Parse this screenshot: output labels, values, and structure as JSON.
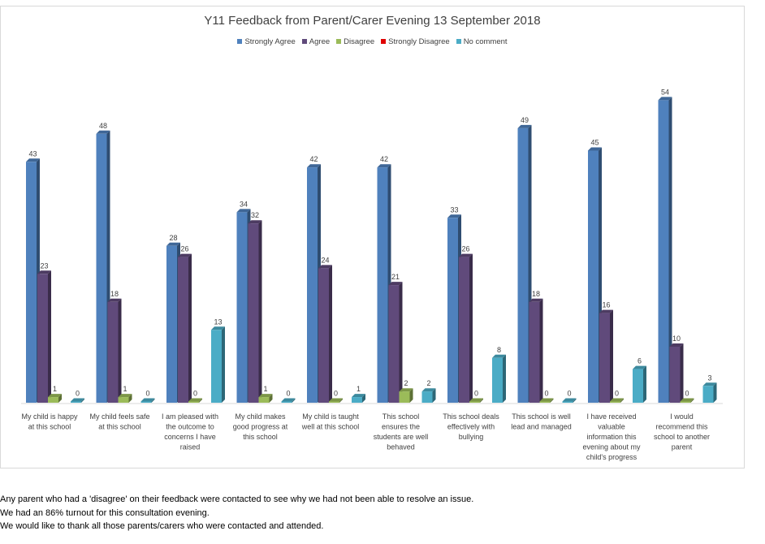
{
  "chart_data": {
    "type": "bar",
    "title": "Y11 Feedback from Parent/Carer Evening 13 September 2018",
    "legend_position": "top",
    "grid": false,
    "ylim": [
      0,
      60
    ],
    "categories": [
      "My child is happy at this school",
      "My child feels safe at this school",
      "I am pleased with the outcome to concerns I have raised",
      "My child makes good progress at this school",
      "My child is taught well at this school",
      "This school ensures the students are well behaved",
      "This school deals effectively with bullying",
      "This school is well lead and managed",
      "I have received valuable information this evening about my child's progress",
      "I would recommend this school to another parent"
    ],
    "category_lines": [
      [
        "My child is happy",
        "at this school"
      ],
      [
        "My child feels safe",
        "at this school"
      ],
      [
        "I am pleased with",
        "the outcome to",
        "concerns I have",
        "raised"
      ],
      [
        "My child makes",
        "good progress at",
        "this school"
      ],
      [
        "My child is taught",
        "well at this school"
      ],
      [
        "This school",
        "ensures the",
        "students are well",
        "behaved"
      ],
      [
        "This school deals",
        "effectively with",
        "bullying"
      ],
      [
        "This school is well",
        "lead and managed"
      ],
      [
        "I have received",
        "valuable",
        "information this",
        "evening about my",
        "child's progress"
      ],
      [
        "I would",
        "recommend this",
        "school to another",
        "parent"
      ]
    ],
    "series": [
      {
        "name": "Strongly Agree",
        "color": "#4F81BD",
        "values": [
          43,
          48,
          28,
          34,
          42,
          42,
          33,
          49,
          45,
          54
        ]
      },
      {
        "name": "Agree",
        "color": "#604A7B",
        "values": [
          23,
          18,
          26,
          32,
          24,
          21,
          26,
          18,
          16,
          10
        ]
      },
      {
        "name": "Disagree",
        "color": "#9BBB59",
        "values": [
          1,
          1,
          0,
          1,
          0,
          2,
          0,
          0,
          0,
          0
        ]
      },
      {
        "name": "Strongly Disagree",
        "color": "#E00000",
        "values": [
          null,
          null,
          null,
          null,
          null,
          null,
          null,
          null,
          null,
          null
        ]
      },
      {
        "name": "No comment",
        "color": "#4BACC6",
        "values": [
          0,
          0,
          13,
          0,
          1,
          2,
          8,
          0,
          6,
          3
        ]
      }
    ]
  },
  "notes": [
    "Any parent who had a 'disagree' on their feedback were contacted to see why we had not been able to resolve an issue.",
    "We had an 86% turnout for this consultation evening.",
    "We would like to thank all those parents/carers who were contacted and attended."
  ]
}
